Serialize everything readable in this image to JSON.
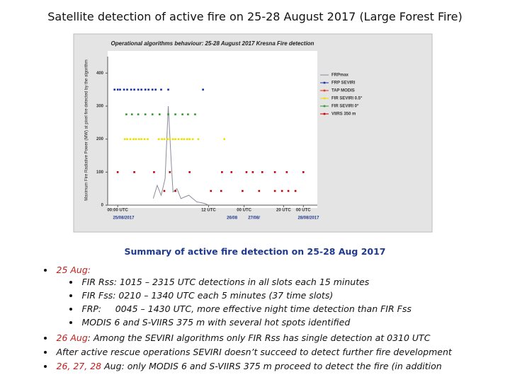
{
  "slide": {
    "title": "Satellite detection of active fire on 25-28 August 2017 (Large Forest Fire)",
    "caption": "Summary of active fire detection on 25-28 Aug 2017",
    "bullets": [
      {
        "date": "25 Aug:",
        "sub": [
          "FIR Rss: 1015 – 2315 UTC detections in all slots each 15 minutes",
          "FIR Fss: 0210 – 1340 UTC each  5 minutes (37 time slots)",
          "FRP:     0045 – 1430 UTC, more effective night time detection than FIR Fss",
          "MODIS 6 and S-VIIRS 375 m with several hot spots identified"
        ]
      },
      {
        "date": "26 Aug",
        "text": ": Among the SEVIRI algorithms only FIR Rss has single detection at 0310 UTC"
      },
      {
        "text": "After active rescue operations SEVIRI doesn’t succeed to detect further fire development"
      },
      {
        "date": "26, 27, 28",
        "text": " Aug: only MODIS 6 and S-VIIRS 375 m proceed to detect the fire (in addition"
      }
    ]
  },
  "chart_data": {
    "type": "scatter",
    "title": "Operational algorithms behaviour:  25-28 August 2017 Kresna Fire detection",
    "ylabel": "Maximum Fire Radiative Power (MW) at pixel fire detected by the algorithm",
    "ylim": [
      0,
      450
    ],
    "yticks": [
      0,
      100,
      200,
      300,
      400
    ],
    "xlim": [
      0,
      26
    ],
    "xticks": [
      {
        "value": 1,
        "label": "00:00 UTC"
      },
      {
        "value": 12.5,
        "label": "12 UTC"
      },
      {
        "value": 17,
        "label": "00 UTC"
      },
      {
        "value": 22,
        "label": "20 UTC"
      },
      {
        "value": 24.5,
        "label": "00 UTC"
      }
    ],
    "xdates": [
      {
        "value": 0.4,
        "label": "25/08/2017"
      },
      {
        "value": 14.8,
        "label": "26/08"
      },
      {
        "value": 17.5,
        "label": "27/08/"
      },
      {
        "value": 23.8,
        "label": "28/08/2017"
      }
    ],
    "series": [
      {
        "name": "FRPmax",
        "color": "#8a8a9a",
        "style": "line",
        "x": [
          5.5,
          6,
          6.5,
          7,
          7.4,
          7.8,
          8,
          8.5,
          9,
          10,
          11,
          12,
          12.5
        ],
        "values": [
          20,
          60,
          30,
          80,
          300,
          120,
          40,
          50,
          20,
          30,
          10,
          5,
          0
        ]
      },
      {
        "name": "FRP SEVIRI",
        "color": "#1f2fa0",
        "x": [
          0.6,
          1.0,
          1.3,
          1.8,
          2.2,
          2.7,
          3.1,
          3.6,
          4.0,
          4.5,
          4.9,
          5.4,
          5.8,
          6.5,
          7.4,
          11.8
        ],
        "values": [
          350,
          350,
          350,
          350,
          350,
          350,
          350,
          350,
          350,
          350,
          350,
          350,
          350,
          350,
          350,
          350
        ]
      },
      {
        "name": "TAP MODIS",
        "color": "#e03020",
        "x": [],
        "values": []
      },
      {
        "name": "FIR SEVIRI 0.5°",
        "color": "#e8e000",
        "x": [
          1.9,
          2.2,
          2.6,
          3.0,
          3.3,
          3.7,
          4.0,
          4.4,
          4.8,
          6.2,
          6.6,
          6.9,
          7.3,
          7.6,
          8.0,
          8.3,
          8.7,
          9.1,
          9.4,
          9.8,
          10.1,
          10.5,
          11.2,
          14.5
        ],
        "values": [
          200,
          200,
          200,
          200,
          200,
          200,
          200,
          200,
          200,
          200,
          200,
          200,
          200,
          200,
          200,
          200,
          200,
          200,
          200,
          200,
          200,
          200,
          200,
          200
        ]
      },
      {
        "name": "FIR SEVIRI 0°",
        "color": "#2e9a2e",
        "x": [
          2.1,
          2.8,
          3.6,
          4.5,
          5.4,
          6.3,
          7.4,
          8.3,
          9.2,
          9.9,
          10.8
        ],
        "values": [
          275,
          275,
          275,
          275,
          275,
          275,
          275,
          275,
          275,
          275,
          275
        ]
      },
      {
        "name": "VIIRS 350 m",
        "color": "#c00000",
        "x": [
          1.0,
          3.1,
          5.6,
          7.6,
          10.1,
          14.2,
          15.4,
          17.3,
          18.1,
          19.3,
          20.9,
          22.4,
          24.5,
          6.9,
          8.3,
          12.8,
          14.1,
          16.8,
          18.9,
          20.9,
          21.8,
          22.6,
          23.5
        ],
        "values": [
          100,
          100,
          100,
          100,
          100,
          100,
          100,
          100,
          100,
          100,
          100,
          100,
          100,
          43,
          43,
          43,
          43,
          43,
          43,
          43,
          43,
          43,
          43
        ]
      }
    ]
  }
}
